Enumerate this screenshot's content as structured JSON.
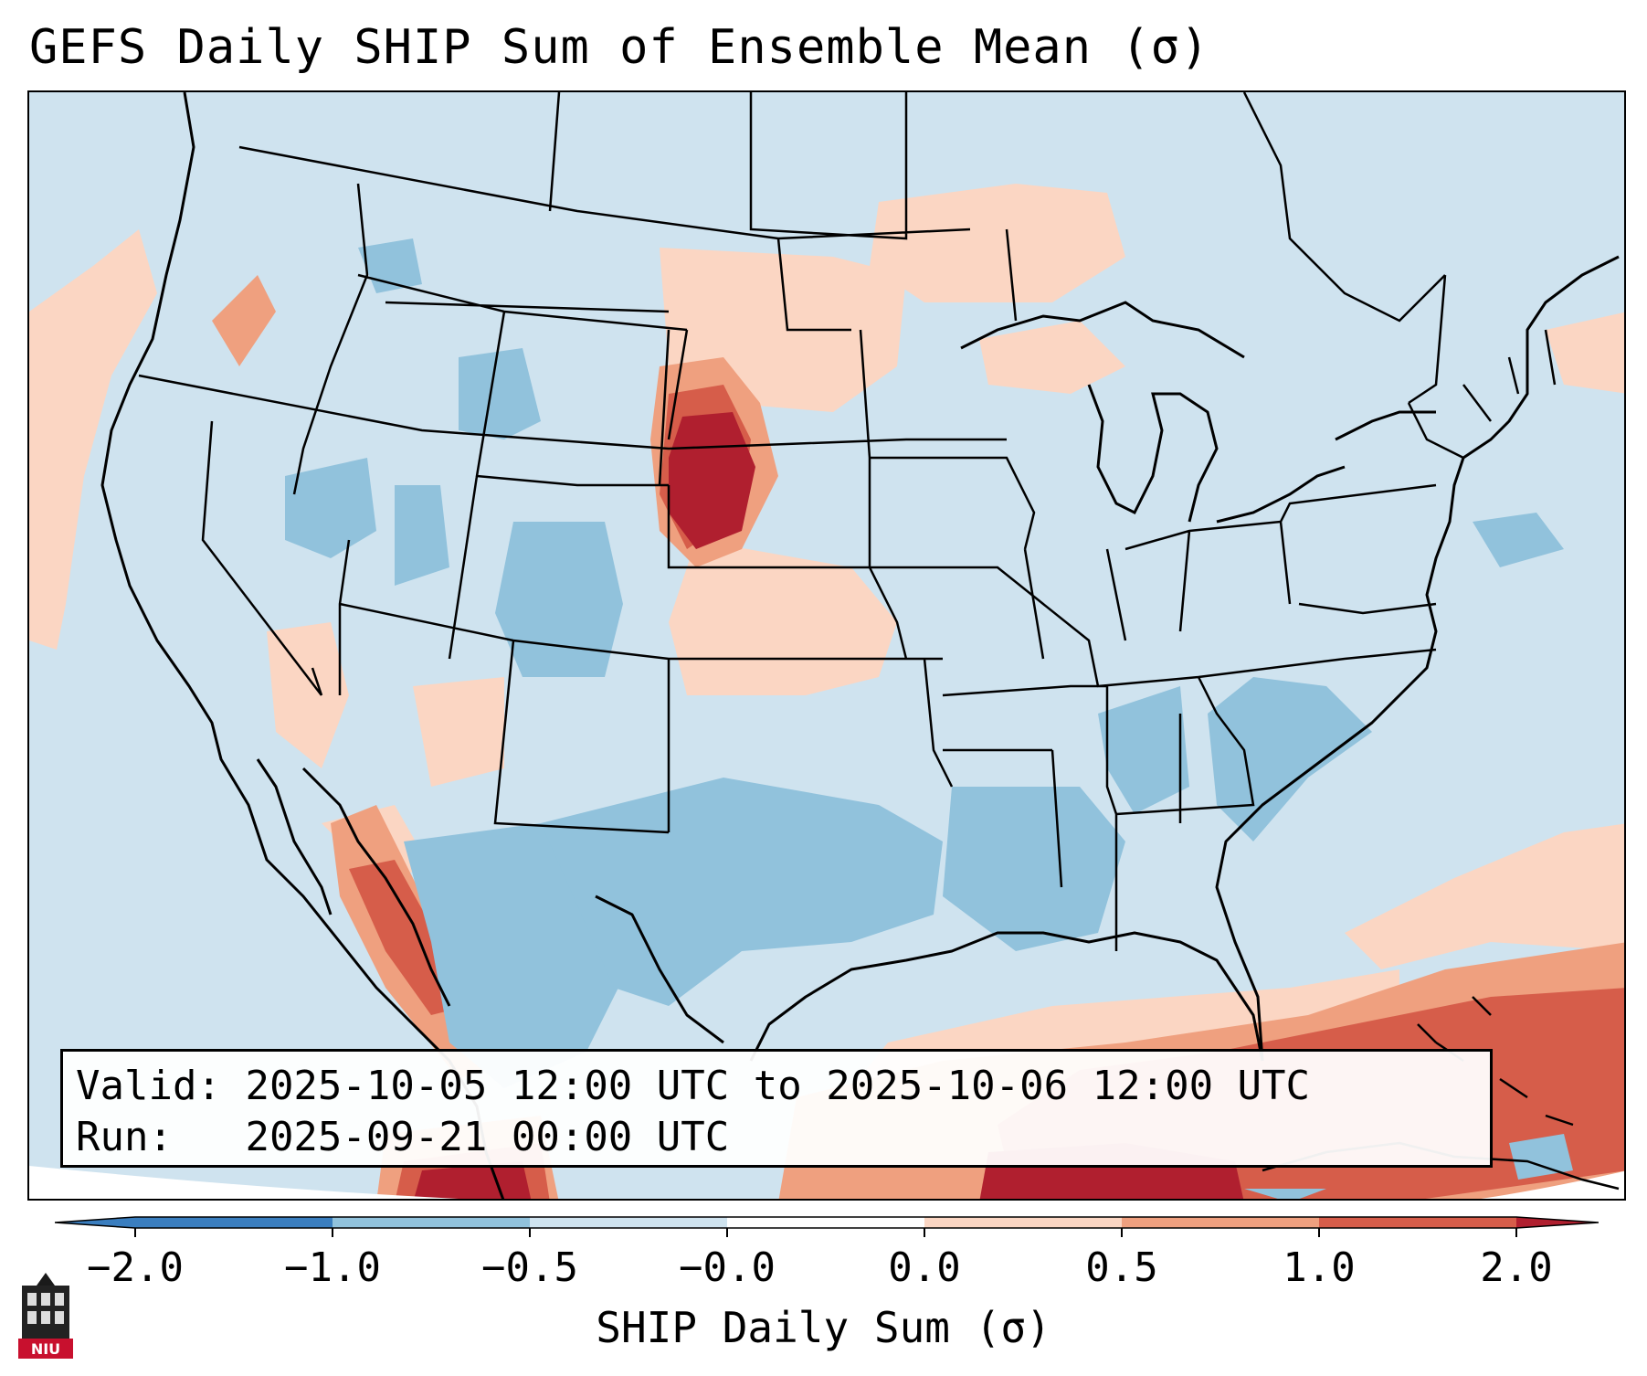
{
  "title": "GEFS Daily SHIP Sum of Ensemble Mean (σ)",
  "info": {
    "valid_label": "Valid:",
    "valid_range": "2025-10-05 12:00 UTC to 2025-10-06 12:00 UTC",
    "run_label": "Run:",
    "run_time": "2025-09-21 00:00 UTC"
  },
  "colorbar": {
    "label": "SHIP Daily Sum (σ)",
    "ticks": [
      "−2.0",
      "−1.0",
      "−0.5",
      "−0.0",
      "0.0",
      "0.5",
      "1.0",
      "2.0"
    ],
    "colors": [
      "#3a7ebf",
      "#91c2dc",
      "#cfe3ef",
      "#fbd6c3",
      "#efa07f",
      "#d65d4a",
      "#b01f2f"
    ]
  },
  "logo": {
    "text": "NIU"
  },
  "icons": {
    "logo": "niu-tower-logo-icon"
  }
}
